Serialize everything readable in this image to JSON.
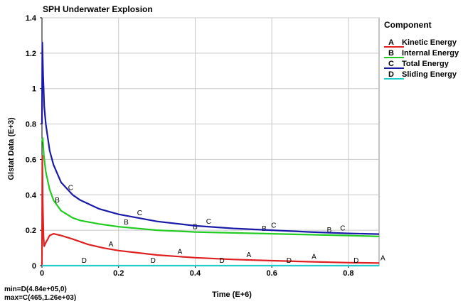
{
  "chart_data": {
    "type": "line",
    "title": "SPH Underwater Explosion",
    "xlabel": "Time (E+6)",
    "ylabel": "Glstat Data (E+3)",
    "xlim": [
      0,
      0.88
    ],
    "ylim": [
      0,
      1.4
    ],
    "xticks": [
      0,
      0.2,
      0.4,
      0.6,
      0.8
    ],
    "xtick_labels": [
      "0",
      "0.2",
      "0.4",
      "0.6",
      "0.8"
    ],
    "yticks": [
      0,
      0.2,
      0.4,
      0.6,
      0.8,
      1.0,
      1.2,
      1.4
    ],
    "ytick_labels": [
      "0",
      "0.2",
      "0.4",
      "0.6",
      "0.8",
      "1",
      "1.2",
      "1.4"
    ],
    "grid": true,
    "legend_title": "Component",
    "legend_position": "right",
    "series": [
      {
        "id": "A",
        "name": "Kinetic Energy",
        "color": "#e02020",
        "x": [
          0,
          0.001,
          0.002,
          0.004,
          0.006,
          0.01,
          0.02,
          0.03,
          0.05,
          0.08,
          0.12,
          0.16,
          0.2,
          0.3,
          0.4,
          0.5,
          0.6,
          0.7,
          0.8,
          0.88
        ],
        "y": [
          0.0,
          0.62,
          0.36,
          0.16,
          0.11,
          0.13,
          0.17,
          0.18,
          0.17,
          0.15,
          0.12,
          0.1,
          0.085,
          0.06,
          0.045,
          0.035,
          0.028,
          0.022,
          0.017,
          0.015
        ],
        "marker_x": [
          0.18,
          0.36,
          0.54,
          0.71,
          0.89
        ]
      },
      {
        "id": "B",
        "name": "Internal Energy",
        "color": "#22cc22",
        "x": [
          0,
          0.002,
          0.005,
          0.01,
          0.02,
          0.03,
          0.05,
          0.08,
          0.1,
          0.15,
          0.2,
          0.3,
          0.4,
          0.5,
          0.6,
          0.7,
          0.8,
          0.88
        ],
        "y": [
          0.7,
          0.72,
          0.62,
          0.53,
          0.43,
          0.37,
          0.31,
          0.27,
          0.255,
          0.235,
          0.22,
          0.2,
          0.19,
          0.185,
          0.18,
          0.175,
          0.17,
          0.165
        ],
        "marker_x": [
          0.04,
          0.22,
          0.4,
          0.58,
          0.75
        ]
      },
      {
        "id": "C",
        "name": "Total Energy",
        "color": "#1a1aa8",
        "x": [
          0,
          0.001,
          0.003,
          0.006,
          0.01,
          0.02,
          0.03,
          0.05,
          0.08,
          0.1,
          0.15,
          0.2,
          0.3,
          0.4,
          0.5,
          0.6,
          0.7,
          0.8,
          0.88
        ],
        "y": [
          0.8,
          1.26,
          1.08,
          0.9,
          0.8,
          0.65,
          0.57,
          0.47,
          0.4,
          0.37,
          0.32,
          0.29,
          0.25,
          0.225,
          0.21,
          0.2,
          0.19,
          0.182,
          0.178
        ],
        "marker_x": [
          0.075,
          0.255,
          0.435,
          0.605,
          0.785
        ]
      },
      {
        "id": "D",
        "name": "Sliding Energy",
        "color": "#22cccc",
        "x": [
          0,
          0.88
        ],
        "y": [
          0.0,
          0.0
        ],
        "marker_x": [
          0.11,
          0.29,
          0.47,
          0.645,
          0.82
        ]
      }
    ],
    "annotations": {
      "min": "min=D(4.84e+05,0)",
      "max": "max=C(465,1.26e+03)"
    }
  }
}
